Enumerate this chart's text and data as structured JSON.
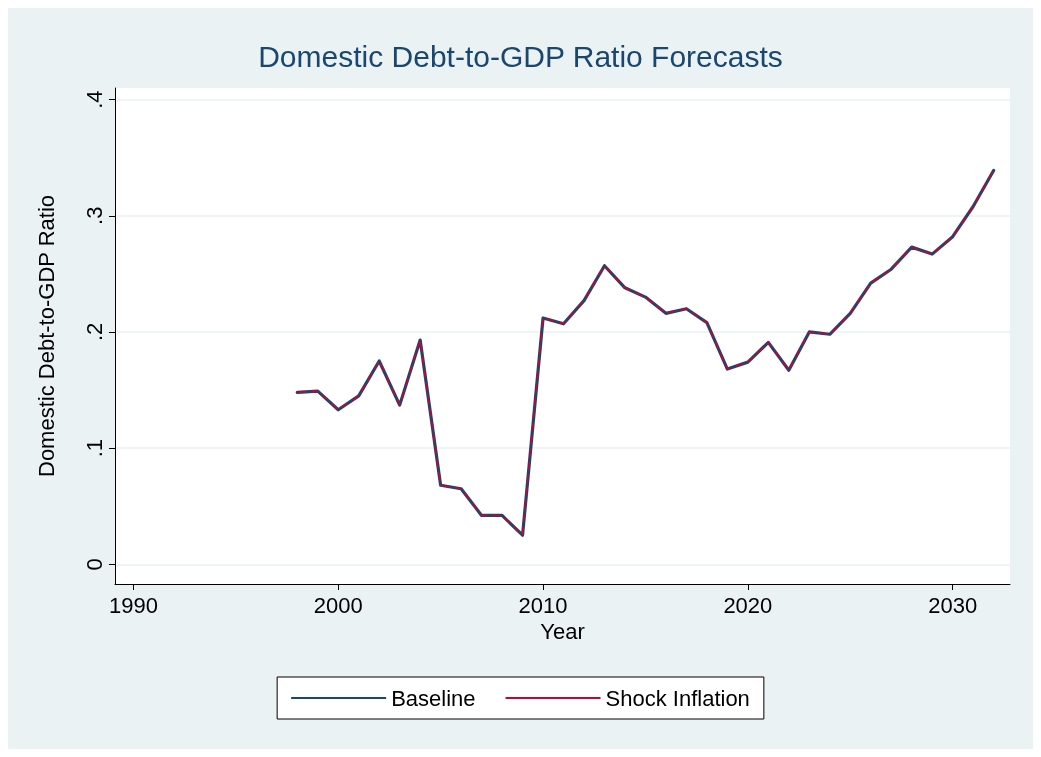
{
  "chart_data": {
    "type": "line",
    "title": "Domestic Debt-to-GDP Ratio Forecasts",
    "xlabel": "Year",
    "ylabel": "Domestic Debt-to-GDP Ratio",
    "x": [
      1998,
      1999,
      2000,
      2001,
      2002,
      2003,
      2004,
      2005,
      2006,
      2007,
      2008,
      2009,
      2010,
      2011,
      2012,
      2013,
      2014,
      2015,
      2016,
      2017,
      2018,
      2019,
      2020,
      2021,
      2022,
      2023,
      2024,
      2025,
      2026,
      2027,
      2028,
      2029,
      2030,
      2031,
      2032
    ],
    "series": [
      {
        "name": "Baseline",
        "color": "#1a476f",
        "line_style": "solid",
        "values": [
          0.148,
          0.149,
          0.133,
          0.145,
          0.175,
          0.137,
          0.193,
          0.068,
          0.065,
          0.042,
          0.042,
          0.025,
          0.212,
          0.207,
          0.227,
          0.257,
          0.238,
          0.23,
          0.216,
          0.22,
          0.208,
          0.168,
          0.174,
          0.191,
          0.167,
          0.2,
          0.198,
          0.216,
          0.242,
          0.254,
          0.273,
          0.267,
          0.282,
          0.308,
          0.339
        ]
      },
      {
        "name": "Shock Inflation",
        "color": "#c10534",
        "line_style": "dashed",
        "values": [
          0.148,
          0.149,
          0.133,
          0.145,
          0.175,
          0.137,
          0.193,
          0.068,
          0.065,
          0.042,
          0.042,
          0.025,
          0.212,
          0.207,
          0.227,
          0.257,
          0.238,
          0.23,
          0.216,
          0.22,
          0.208,
          0.168,
          0.174,
          0.191,
          0.167,
          0.2,
          0.198,
          0.216,
          0.242,
          0.254,
          0.273,
          0.267,
          0.282,
          0.308,
          0.339
        ]
      }
    ],
    "xlim": [
      1989.1,
      2032.8
    ],
    "xticks": [
      1990,
      2000,
      2010,
      2020,
      2030
    ],
    "ylim": [
      -0.017,
      0.41
    ],
    "yticks": [
      {
        "value": 0,
        "label": "0"
      },
      {
        "value": 0.1,
        "label": ".1"
      },
      {
        "value": 0.2,
        "label": ".2"
      },
      {
        "value": 0.3,
        "label": ".3"
      },
      {
        "value": 0.4,
        "label": ".4"
      }
    ],
    "grid": "y",
    "legend": "bottom",
    "marker": "none"
  }
}
